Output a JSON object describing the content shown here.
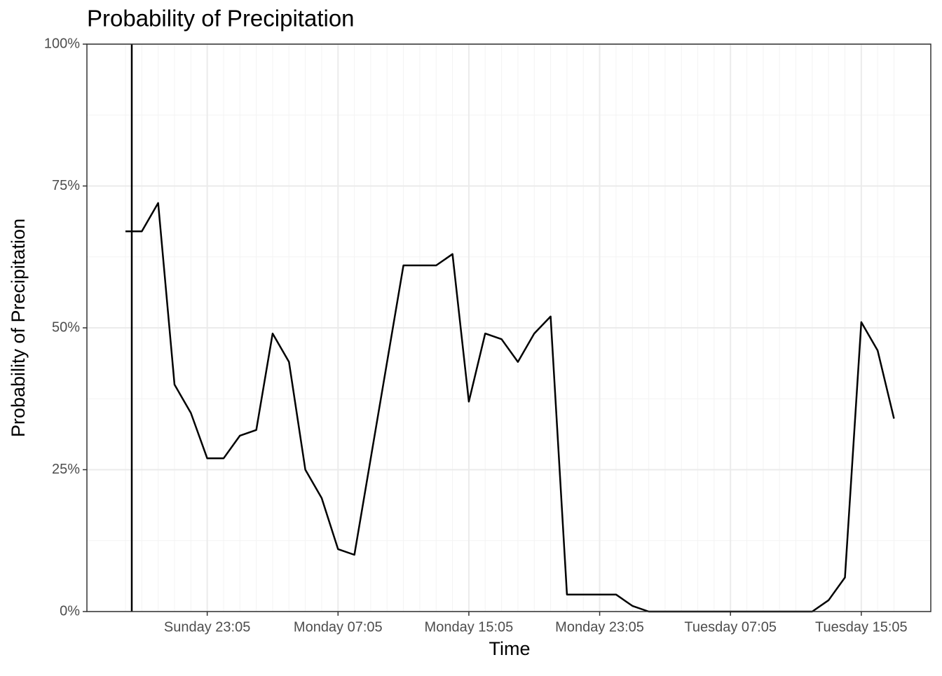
{
  "chart_data": {
    "type": "line",
    "title": "Probability of Precipitation",
    "x_label": "Time",
    "y_label": "Probability of Precipitation",
    "categories": [
      null,
      null,
      null,
      null,
      null,
      "Sunday 23:05",
      null,
      null,
      null,
      null,
      null,
      null,
      null,
      "Monday 07:05",
      null,
      null,
      null,
      null,
      null,
      null,
      null,
      "Monday 15:05",
      null,
      null,
      null,
      null,
      null,
      null,
      null,
      "Monday 23:05",
      null,
      null,
      null,
      null,
      null,
      null,
      null,
      "Tuesday 07:05",
      null,
      null,
      null,
      null,
      null,
      null,
      null,
      "Tuesday 15:05",
      null,
      null
    ],
    "series": [
      {
        "name": "Probability of Precipitation",
        "color": "#000000",
        "values": [
          67,
          67,
          72,
          40,
          35,
          27,
          27,
          31,
          32,
          49,
          44,
          25,
          20,
          11,
          10,
          27,
          44,
          61,
          61,
          61,
          63,
          37,
          49,
          48,
          44,
          49,
          52,
          3,
          3,
          3,
          3,
          1,
          0,
          0,
          0,
          0,
          0,
          0,
          0,
          0,
          0,
          0,
          0,
          2,
          6,
          51,
          46,
          34
        ]
      }
    ],
    "ylim": [
      0,
      100
    ],
    "yticks": [
      {
        "value": 0,
        "label": "0%"
      },
      {
        "value": 25,
        "label": "25%"
      },
      {
        "value": 50,
        "label": "50%"
      },
      {
        "value": 75,
        "label": "75%"
      },
      {
        "value": 100,
        "label": "100%"
      }
    ],
    "grid": true
  }
}
